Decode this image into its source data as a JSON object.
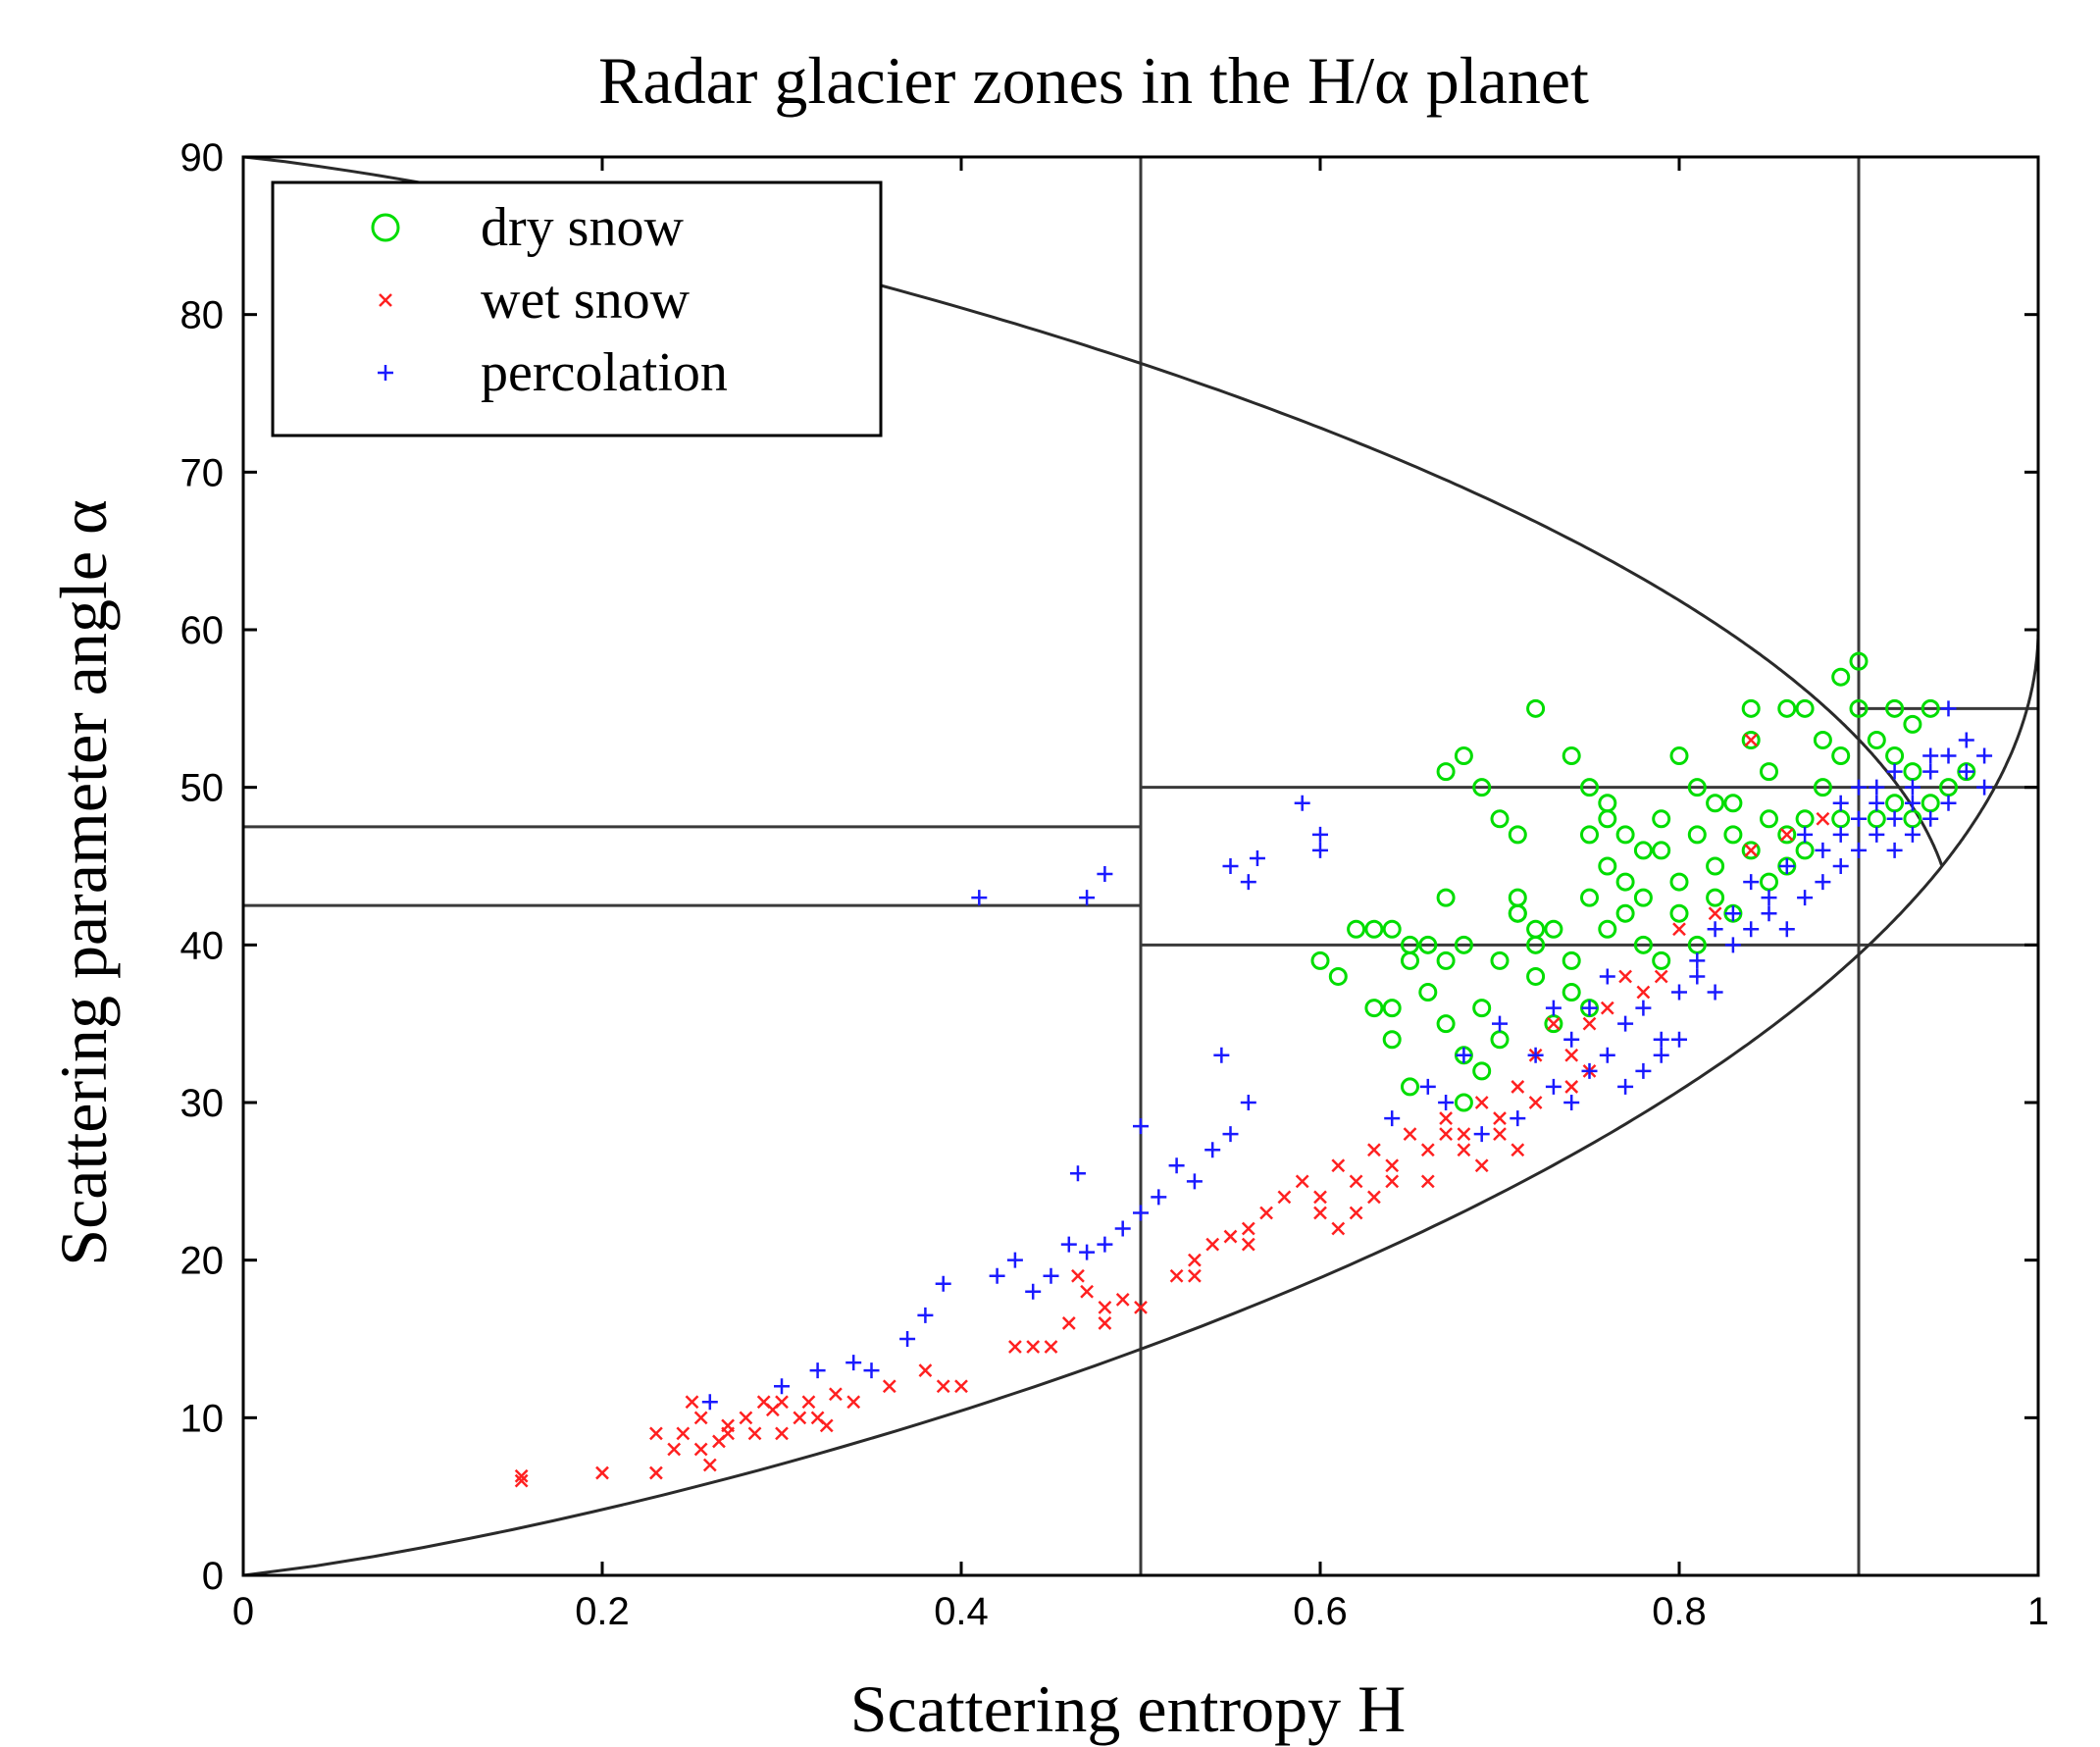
{
  "chart_data": {
    "type": "scatter",
    "title": "Radar glacier zones in the H/α planet",
    "xlabel": "Scattering entropy H",
    "ylabel": "Scattering parameter angle α",
    "xlim": [
      0,
      1
    ],
    "ylim": [
      0,
      90
    ],
    "x_ticks": [
      "0",
      "0.2",
      "0.4",
      "0.6",
      "0.8",
      "1"
    ],
    "y_ticks": [
      "0",
      "10",
      "20",
      "30",
      "40",
      "50",
      "60",
      "70",
      "80",
      "90"
    ],
    "legend_position": "top-left",
    "zone_boundaries": {
      "vertical_lines_H": [
        0.5,
        0.9
      ],
      "horizontal_segments": [
        {
          "alpha": 47.5,
          "H_range": [
            0,
            0.5
          ]
        },
        {
          "alpha": 42.5,
          "H_range": [
            0,
            0.5
          ]
        },
        {
          "alpha": 50,
          "H_range": [
            0.5,
            1
          ]
        },
        {
          "alpha": 40,
          "H_range": [
            0.5,
            1
          ]
        },
        {
          "alpha": 55,
          "H_range": [
            0.9,
            1
          ]
        }
      ],
      "feasible_region_curve": "H/alpha plane boundary"
    },
    "series": [
      {
        "name": "dry snow",
        "marker": "circle",
        "color": "#00dd00",
        "points": [
          [
            0.6,
            39
          ],
          [
            0.61,
            38
          ],
          [
            0.62,
            41
          ],
          [
            0.63,
            41
          ],
          [
            0.64,
            41
          ],
          [
            0.65,
            40
          ],
          [
            0.66,
            40
          ],
          [
            0.67,
            39
          ],
          [
            0.68,
            40
          ],
          [
            0.65,
            39
          ],
          [
            0.64,
            36
          ],
          [
            0.63,
            36
          ],
          [
            0.64,
            34
          ],
          [
            0.66,
            37
          ],
          [
            0.67,
            35
          ],
          [
            0.68,
            33
          ],
          [
            0.69,
            32
          ],
          [
            0.7,
            34
          ],
          [
            0.65,
            31
          ],
          [
            0.68,
            30
          ],
          [
            0.67,
            43
          ],
          [
            0.68,
            52
          ],
          [
            0.67,
            51
          ],
          [
            0.69,
            50
          ],
          [
            0.7,
            48
          ],
          [
            0.71,
            47
          ],
          [
            0.72,
            55
          ],
          [
            0.71,
            43
          ],
          [
            0.71,
            42
          ],
          [
            0.72,
            41
          ],
          [
            0.72,
            40
          ],
          [
            0.73,
            41
          ],
          [
            0.74,
            39
          ],
          [
            0.74,
            37
          ],
          [
            0.75,
            36
          ],
          [
            0.73,
            35
          ],
          [
            0.72,
            38
          ],
          [
            0.71,
            42
          ],
          [
            0.7,
            39
          ],
          [
            0.69,
            36
          ],
          [
            0.74,
            52
          ],
          [
            0.75,
            50
          ],
          [
            0.76,
            49
          ],
          [
            0.76,
            48
          ],
          [
            0.75,
            47
          ],
          [
            0.76,
            45
          ],
          [
            0.77,
            44
          ],
          [
            0.78,
            43
          ],
          [
            0.77,
            42
          ],
          [
            0.75,
            43
          ],
          [
            0.76,
            41
          ],
          [
            0.78,
            40
          ],
          [
            0.79,
            39
          ],
          [
            0.8,
            42
          ],
          [
            0.8,
            44
          ],
          [
            0.79,
            46
          ],
          [
            0.81,
            47
          ],
          [
            0.81,
            50
          ],
          [
            0.8,
            52
          ],
          [
            0.79,
            48
          ],
          [
            0.82,
            49
          ],
          [
            0.83,
            49
          ],
          [
            0.82,
            45
          ],
          [
            0.83,
            42
          ],
          [
            0.81,
            40
          ],
          [
            0.84,
            53
          ],
          [
            0.84,
            55
          ],
          [
            0.85,
            51
          ],
          [
            0.85,
            48
          ],
          [
            0.86,
            47
          ],
          [
            0.86,
            45
          ],
          [
            0.85,
            44
          ],
          [
            0.87,
            46
          ],
          [
            0.87,
            48
          ],
          [
            0.86,
            55
          ],
          [
            0.87,
            55
          ],
          [
            0.88,
            53
          ],
          [
            0.88,
            50
          ],
          [
            0.89,
            52
          ],
          [
            0.89,
            48
          ],
          [
            0.89,
            57
          ],
          [
            0.9,
            58
          ],
          [
            0.9,
            55
          ],
          [
            0.91,
            53
          ],
          [
            0.92,
            55
          ],
          [
            0.92,
            52
          ],
          [
            0.93,
            54
          ],
          [
            0.94,
            55
          ],
          [
            0.93,
            51
          ],
          [
            0.91,
            48
          ],
          [
            0.92,
            49
          ],
          [
            0.93,
            48
          ],
          [
            0.95,
            50
          ],
          [
            0.96,
            51
          ],
          [
            0.94,
            49
          ],
          [
            0.77,
            47
          ],
          [
            0.78,
            46
          ],
          [
            0.82,
            43
          ],
          [
            0.83,
            47
          ],
          [
            0.84,
            46
          ]
        ]
      },
      {
        "name": "wet snow",
        "marker": "x",
        "color": "#ff2020",
        "points": [
          [
            0.155,
            6
          ],
          [
            0.155,
            6.3
          ],
          [
            0.2,
            6.5
          ],
          [
            0.23,
            6.5
          ],
          [
            0.23,
            9
          ],
          [
            0.24,
            8
          ],
          [
            0.245,
            9
          ],
          [
            0.25,
            11
          ],
          [
            0.255,
            10
          ],
          [
            0.255,
            8
          ],
          [
            0.26,
            7
          ],
          [
            0.265,
            8.5
          ],
          [
            0.27,
            9.5
          ],
          [
            0.28,
            10
          ],
          [
            0.285,
            9
          ],
          [
            0.29,
            11
          ],
          [
            0.295,
            10.5
          ],
          [
            0.3,
            9
          ],
          [
            0.31,
            10
          ],
          [
            0.315,
            11
          ],
          [
            0.32,
            10
          ],
          [
            0.325,
            9.5
          ],
          [
            0.33,
            11.5
          ],
          [
            0.34,
            11
          ],
          [
            0.36,
            12
          ],
          [
            0.38,
            13
          ],
          [
            0.39,
            12
          ],
          [
            0.4,
            12
          ],
          [
            0.43,
            14.5
          ],
          [
            0.44,
            14.5
          ],
          [
            0.45,
            14.5
          ],
          [
            0.46,
            16
          ],
          [
            0.47,
            18
          ],
          [
            0.48,
            17
          ],
          [
            0.49,
            17.5
          ],
          [
            0.5,
            17
          ],
          [
            0.52,
            19
          ],
          [
            0.53,
            20
          ],
          [
            0.54,
            21
          ],
          [
            0.55,
            21.5
          ],
          [
            0.56,
            22
          ],
          [
            0.57,
            23
          ],
          [
            0.58,
            24
          ],
          [
            0.59,
            25
          ],
          [
            0.6,
            24
          ],
          [
            0.61,
            26
          ],
          [
            0.62,
            25
          ],
          [
            0.63,
            27
          ],
          [
            0.64,
            26
          ],
          [
            0.65,
            28
          ],
          [
            0.66,
            27
          ],
          [
            0.67,
            29
          ],
          [
            0.68,
            28
          ],
          [
            0.69,
            30
          ],
          [
            0.7,
            29
          ],
          [
            0.71,
            31
          ],
          [
            0.72,
            33
          ],
          [
            0.73,
            35
          ],
          [
            0.74,
            33
          ],
          [
            0.75,
            32
          ],
          [
            0.76,
            36
          ],
          [
            0.77,
            38
          ],
          [
            0.78,
            37
          ],
          [
            0.79,
            38
          ],
          [
            0.8,
            41
          ],
          [
            0.82,
            42
          ],
          [
            0.84,
            46
          ],
          [
            0.86,
            47
          ],
          [
            0.88,
            48
          ],
          [
            0.84,
            53
          ],
          [
            0.6,
            23
          ],
          [
            0.62,
            23
          ],
          [
            0.63,
            24
          ],
          [
            0.66,
            25
          ],
          [
            0.68,
            27
          ],
          [
            0.7,
            28
          ],
          [
            0.71,
            27
          ],
          [
            0.61,
            22
          ],
          [
            0.64,
            25
          ],
          [
            0.67,
            28
          ],
          [
            0.69,
            26
          ],
          [
            0.72,
            30
          ],
          [
            0.74,
            31
          ],
          [
            0.75,
            35
          ],
          [
            0.53,
            19
          ],
          [
            0.56,
            21
          ],
          [
            0.48,
            16
          ],
          [
            0.465,
            19
          ],
          [
            0.27,
            9
          ],
          [
            0.3,
            11
          ]
        ]
      },
      {
        "name": "percolation",
        "marker": "plus",
        "color": "#1a1aff",
        "points": [
          [
            0.26,
            11
          ],
          [
            0.3,
            12
          ],
          [
            0.32,
            13
          ],
          [
            0.34,
            13.5
          ],
          [
            0.35,
            13
          ],
          [
            0.37,
            15
          ],
          [
            0.38,
            16.5
          ],
          [
            0.39,
            18.5
          ],
          [
            0.42,
            19
          ],
          [
            0.43,
            20
          ],
          [
            0.44,
            18
          ],
          [
            0.45,
            19
          ],
          [
            0.46,
            21
          ],
          [
            0.465,
            25.5
          ],
          [
            0.47,
            20.5
          ],
          [
            0.48,
            21
          ],
          [
            0.49,
            22
          ],
          [
            0.5,
            23
          ],
          [
            0.5,
            28.5
          ],
          [
            0.51,
            24
          ],
          [
            0.52,
            26
          ],
          [
            0.53,
            25
          ],
          [
            0.54,
            27
          ],
          [
            0.55,
            28
          ],
          [
            0.56,
            30
          ],
          [
            0.545,
            33
          ],
          [
            0.41,
            43
          ],
          [
            0.47,
            43
          ],
          [
            0.48,
            44.5
          ],
          [
            0.55,
            45
          ],
          [
            0.56,
            44
          ],
          [
            0.565,
            45.5
          ],
          [
            0.59,
            49
          ],
          [
            0.6,
            47
          ],
          [
            0.6,
            46
          ],
          [
            0.64,
            29
          ],
          [
            0.66,
            31
          ],
          [
            0.68,
            33
          ],
          [
            0.7,
            35
          ],
          [
            0.72,
            33
          ],
          [
            0.73,
            36
          ],
          [
            0.74,
            34
          ],
          [
            0.75,
            36
          ],
          [
            0.76,
            38
          ],
          [
            0.77,
            35
          ],
          [
            0.78,
            36
          ],
          [
            0.79,
            34
          ],
          [
            0.8,
            37
          ],
          [
            0.81,
            39
          ],
          [
            0.82,
            37
          ],
          [
            0.83,
            40
          ],
          [
            0.84,
            41
          ],
          [
            0.85,
            42
          ],
          [
            0.86,
            41
          ],
          [
            0.87,
            43
          ],
          [
            0.88,
            44
          ],
          [
            0.89,
            45
          ],
          [
            0.9,
            46
          ],
          [
            0.91,
            47
          ],
          [
            0.92,
            48
          ],
          [
            0.93,
            50
          ],
          [
            0.94,
            51
          ],
          [
            0.95,
            52
          ],
          [
            0.96,
            51
          ],
          [
            0.97,
            52
          ],
          [
            0.93,
            47
          ],
          [
            0.94,
            48
          ],
          [
            0.95,
            49
          ],
          [
            0.92,
            46
          ],
          [
            0.91,
            50
          ],
          [
            0.9,
            48
          ],
          [
            0.89,
            47
          ],
          [
            0.88,
            46
          ],
          [
            0.87,
            47
          ],
          [
            0.86,
            45
          ],
          [
            0.85,
            43
          ],
          [
            0.84,
            44
          ],
          [
            0.83,
            42
          ],
          [
            0.82,
            41
          ],
          [
            0.81,
            38
          ],
          [
            0.8,
            34
          ],
          [
            0.79,
            33
          ],
          [
            0.78,
            32
          ],
          [
            0.77,
            31
          ],
          [
            0.76,
            33
          ],
          [
            0.75,
            32
          ],
          [
            0.74,
            30
          ],
          [
            0.73,
            31
          ],
          [
            0.71,
            29
          ],
          [
            0.69,
            28
          ],
          [
            0.67,
            30
          ],
          [
            0.96,
            53
          ],
          [
            0.95,
            55
          ],
          [
            0.97,
            50
          ],
          [
            0.94,
            52
          ],
          [
            0.93,
            49
          ],
          [
            0.92,
            51
          ],
          [
            0.91,
            49
          ],
          [
            0.9,
            50
          ],
          [
            0.89,
            49
          ]
        ]
      }
    ]
  }
}
